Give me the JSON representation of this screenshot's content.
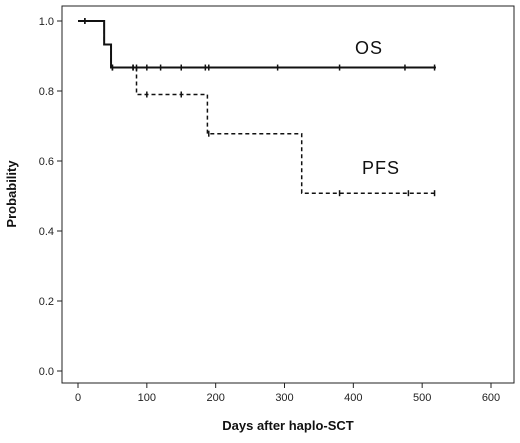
{
  "chart_data": {
    "type": "line",
    "subtype": "kaplan-meier step",
    "xlabel": "Days after haplo-SCT",
    "ylabel": "Probability",
    "xlim": [
      0,
      600
    ],
    "ylim": [
      0,
      1.0
    ],
    "x_ticks": [
      "0",
      "100",
      "200",
      "300",
      "400",
      "500",
      "600"
    ],
    "y_ticks": [
      "0.0",
      "0.2",
      "0.4",
      "0.6",
      "0.8",
      "1.0"
    ],
    "grid": false,
    "series": [
      {
        "name": "OS",
        "style": "solid",
        "color": "#111111",
        "steps": [
          [
            0,
            1.0
          ],
          [
            38,
            0.933
          ],
          [
            48,
            0.867
          ],
          [
            520,
            0.867
          ]
        ],
        "censored": [
          10,
          50,
          80,
          85,
          100,
          120,
          150,
          185,
          190,
          290,
          380,
          475,
          518
        ]
      },
      {
        "name": "PFS",
        "style": "dashed",
        "color": "#111111",
        "steps": [
          [
            0,
            1.0
          ],
          [
            38,
            0.933
          ],
          [
            48,
            0.867
          ],
          [
            85,
            0.79
          ],
          [
            188,
            0.678
          ],
          [
            325,
            0.508
          ],
          [
            520,
            0.508
          ]
        ],
        "censored": [
          10,
          50,
          80,
          100,
          150,
          190,
          380,
          480,
          518
        ]
      }
    ]
  }
}
